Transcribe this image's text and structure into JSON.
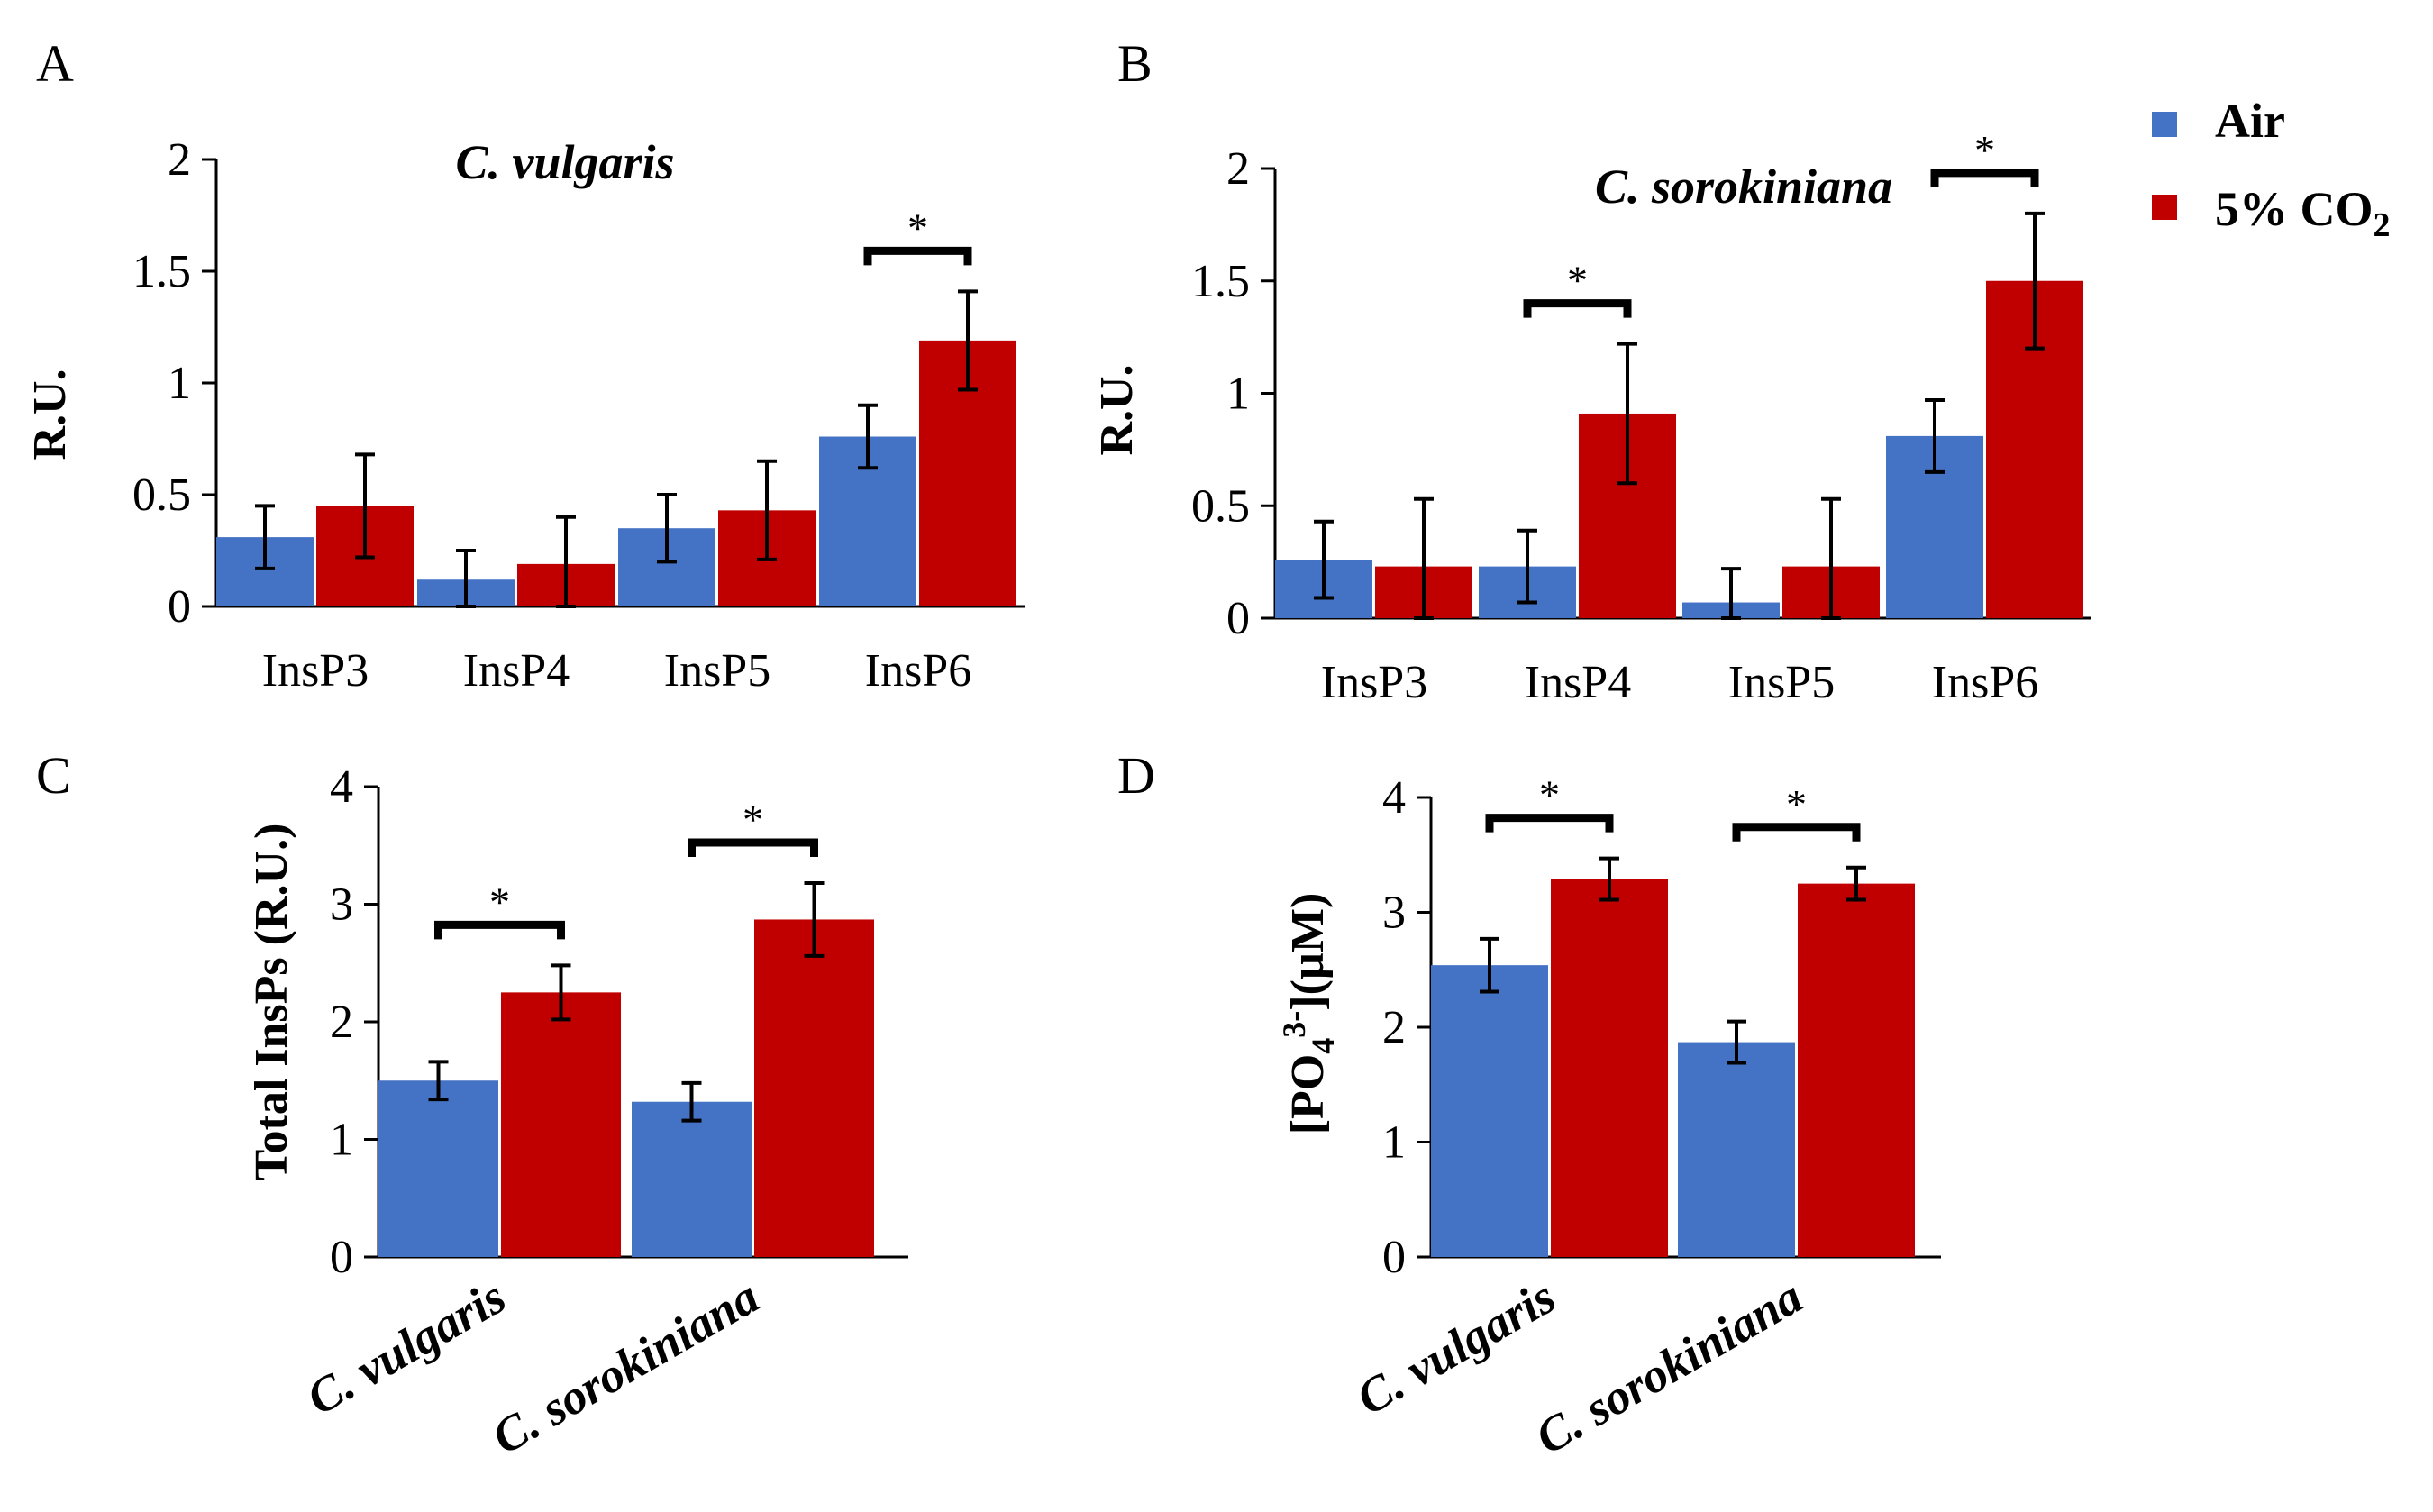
{
  "colors": {
    "air": "#4472C4",
    "co2": "#C00000",
    "axis": "#000000"
  },
  "legend": [
    {
      "label": "Air",
      "color": "#4472C4"
    },
    {
      "label": "5% CO",
      "sub": "2",
      "color": "#C00000"
    }
  ],
  "chart_data": [
    {
      "panel": "A",
      "type": "bar",
      "title": "C. vulgaris",
      "ylabel": "R.U.",
      "ylim": [
        0,
        2
      ],
      "yticks": [
        "0",
        "0.5",
        "1",
        "1.5",
        "2"
      ],
      "ytick_values": [
        0,
        0.5,
        1,
        1.5,
        2
      ],
      "categories": [
        "InsP3",
        "InsP4",
        "InsP5",
        "InsP6"
      ],
      "series": [
        {
          "name": "Air",
          "values": [
            0.31,
            0.12,
            0.35,
            0.76
          ],
          "errors": [
            0.14,
            0.13,
            0.15,
            0.14
          ]
        },
        {
          "name": "5% CO2",
          "values": [
            0.45,
            0.19,
            0.43,
            1.19
          ],
          "errors": [
            0.23,
            0.21,
            0.22,
            0.22
          ]
        }
      ],
      "significance": [
        {
          "category": 3,
          "label": "*"
        }
      ]
    },
    {
      "panel": "B",
      "type": "bar",
      "title": "C. sorokiniana",
      "ylabel": "R.U.",
      "ylim": [
        0,
        2
      ],
      "yticks": [
        "0",
        "0.5",
        "1",
        "1.5",
        "2"
      ],
      "ytick_values": [
        0,
        0.5,
        1,
        1.5,
        2
      ],
      "categories": [
        "InsP3",
        "InsP4",
        "InsP5",
        "InsP6"
      ],
      "series": [
        {
          "name": "Air",
          "values": [
            0.26,
            0.23,
            0.07,
            0.81
          ],
          "errors": [
            0.17,
            0.16,
            0.15,
            0.16
          ]
        },
        {
          "name": "5% CO2",
          "values": [
            0.23,
            0.91,
            0.23,
            1.5
          ],
          "errors": [
            0.3,
            0.31,
            0.3,
            0.3
          ]
        }
      ],
      "significance": [
        {
          "category": 1,
          "label": "*"
        },
        {
          "category": 3,
          "label": "*"
        }
      ]
    },
    {
      "panel": "C",
      "type": "bar",
      "title": "",
      "ylabel": "Total InsPs (R.U.)",
      "ylim": [
        0,
        4
      ],
      "yticks": [
        "0",
        "1",
        "2",
        "3",
        "4"
      ],
      "ytick_values": [
        0,
        1,
        2,
        3,
        4
      ],
      "categories": [
        "C. vulgaris",
        "C. sorokiniana"
      ],
      "series": [
        {
          "name": "Air",
          "values": [
            1.5,
            1.32
          ],
          "errors": [
            0.16,
            0.16
          ]
        },
        {
          "name": "5% CO2",
          "values": [
            2.25,
            2.87
          ],
          "errors": [
            0.23,
            0.31
          ]
        }
      ],
      "significance": [
        {
          "category": 0,
          "label": "*"
        },
        {
          "category": 1,
          "label": "*"
        }
      ]
    },
    {
      "panel": "D",
      "type": "bar",
      "title": "",
      "ylabel": "[PO4 3-](µM)",
      "ylim": [
        0,
        4
      ],
      "yticks": [
        "0",
        "1",
        "2",
        "3",
        "4"
      ],
      "ytick_values": [
        0,
        1,
        2,
        3,
        4
      ],
      "categories": [
        "C. vulgaris",
        "C. sorokiniana"
      ],
      "series": [
        {
          "name": "Air",
          "values": [
            2.54,
            1.87
          ],
          "errors": [
            0.23,
            0.18
          ]
        },
        {
          "name": "5% CO2",
          "values": [
            3.29,
            3.25
          ],
          "errors": [
            0.18,
            0.14
          ]
        }
      ],
      "significance": [
        {
          "category": 0,
          "label": "*"
        },
        {
          "category": 1,
          "label": "*"
        }
      ]
    }
  ]
}
